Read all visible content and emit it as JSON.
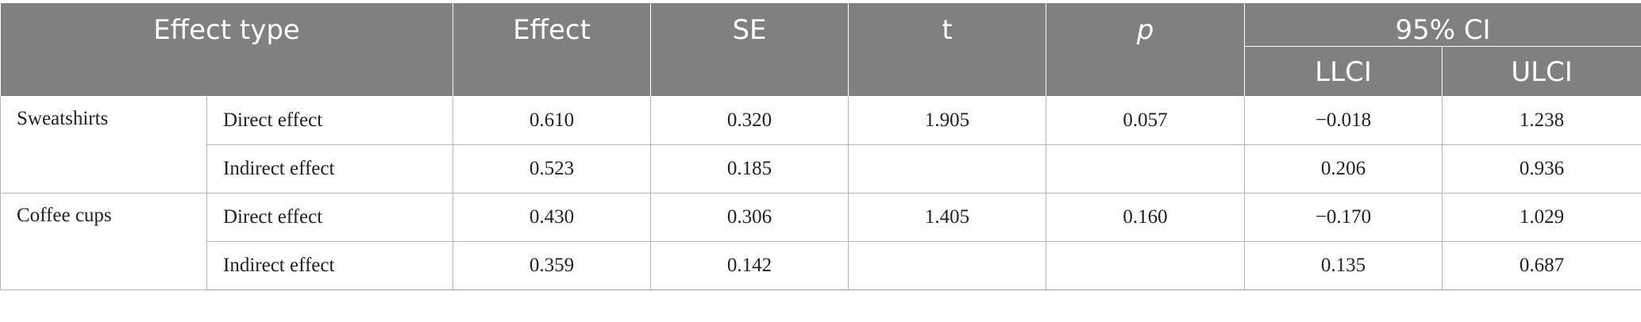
{
  "table": {
    "header": {
      "effect_type": "Effect type",
      "effect": "Effect",
      "se": "SE",
      "t": "t",
      "p": "p",
      "ci": "95% CI",
      "llci": "LLCI",
      "ulci": "ULCI"
    },
    "groups": [
      {
        "name": "Sweatshirts",
        "rows": [
          {
            "type": "Direct effect",
            "effect": "0.610",
            "se": "0.320",
            "t": "1.905",
            "p": "0.057",
            "llci": "−0.018",
            "ulci": "1.238"
          },
          {
            "type": "Indirect effect",
            "effect": "0.523",
            "se": "0.185",
            "t": "",
            "p": "",
            "llci": "0.206",
            "ulci": "0.936"
          }
        ]
      },
      {
        "name": "Coffee cups",
        "rows": [
          {
            "type": "Direct effect",
            "effect": "0.430",
            "se": "0.306",
            "t": "1.405",
            "p": "0.160",
            "llci": "−0.170",
            "ulci": "1.029"
          },
          {
            "type": "Indirect effect",
            "effect": "0.359",
            "se": "0.142",
            "t": "",
            "p": "",
            "llci": "0.135",
            "ulci": "0.687"
          }
        ]
      }
    ]
  }
}
